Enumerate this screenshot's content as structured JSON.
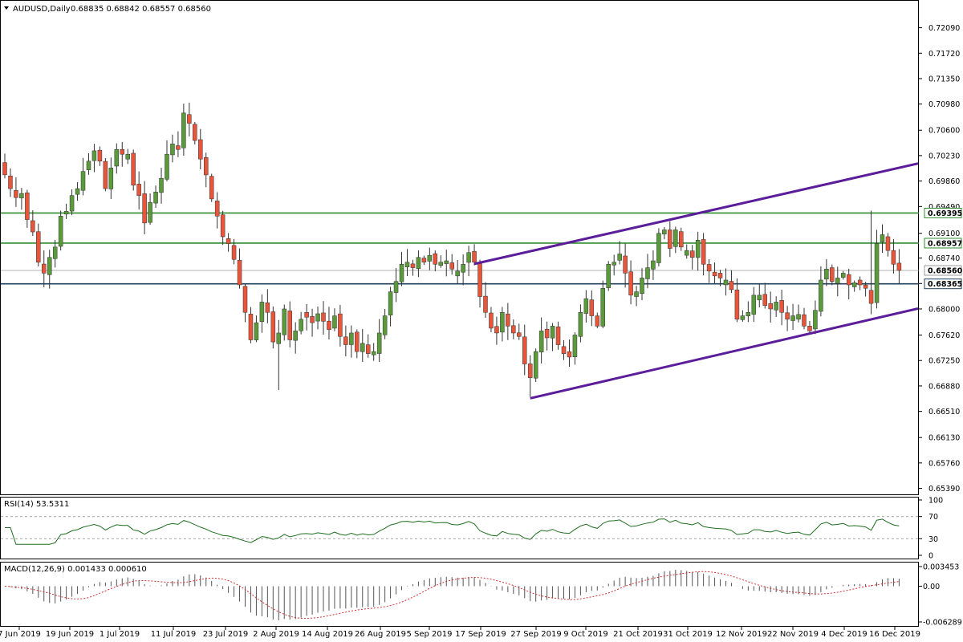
{
  "colors": {
    "bull": "#5a9a3a",
    "bear": "#e8553a",
    "level": "#2e8b2e",
    "level_dark": "#1f3f5a",
    "channel": "#5b1d9a",
    "osc_line": "#1f6e1f",
    "signal": "#cc3333",
    "grid": "#9a9a9a"
  },
  "main": {
    "title": "AUDUSD,Daily",
    "ohlc": "0.68835 0.68842 0.68557 0.68560",
    "price_ticks": [
      "0.72090",
      "0.71720",
      "0.71350",
      "0.70980",
      "0.70600",
      "0.70230",
      "0.69860",
      "0.69490",
      "0.69100",
      "0.68740",
      "0.68370",
      "0.68000",
      "0.67620",
      "0.67250",
      "0.66880",
      "0.66510",
      "0.66130",
      "0.65760",
      "0.65390"
    ],
    "price_tags": [
      {
        "value": 0.69395,
        "label": "0.69395",
        "color": "#2e8b2e"
      },
      {
        "value": 0.68957,
        "label": "0.68957",
        "color": "#2e8b2e"
      },
      {
        "value": 0.6856,
        "label": "0.68560",
        "color": "#9a9a9a"
      },
      {
        "value": 0.68365,
        "label": "0.68365",
        "color": "#1f3f5a"
      }
    ],
    "channel_lines": [
      {
        "i1": 84,
        "p1": 0.68655,
        "i2": 162,
        "p2": 0.7009
      },
      {
        "i1": 94,
        "p1": 0.667,
        "i2": 162,
        "p2": 0.6798
      }
    ]
  },
  "rsi": {
    "title": "RSI(14) 53.5311",
    "ticks": [
      "100",
      "70",
      "30",
      "0"
    ]
  },
  "macd": {
    "title": "MACD(12,26,9) 0.001433 0.000610",
    "ticks": [
      "0.003453",
      "0.00",
      "-0.006289"
    ]
  },
  "dates": [
    "7 Jun 2019",
    "19 Jun 2019",
    "1 Jul 2019",
    "11 Jul 2019",
    "23 Jul 2019",
    "2 Aug 2019",
    "14 Aug 2019",
    "26 Aug 2019",
    "5 Sep 2019",
    "17 Sep 2019",
    "27 Sep 2019",
    "9 Oct 2019",
    "21 Oct 2019",
    "31 Oct 2019",
    "12 Nov 2019",
    "22 Nov 2019",
    "4 Dec 2019",
    "16 Dec 2019"
  ],
  "chart_data": {
    "type": "candlestick",
    "symbol": "AUDUSD",
    "timeframe": "Daily",
    "ylim": [
      0.6535,
      0.7226
    ],
    "close": [
      0.6995,
      0.6975,
      0.6962,
      0.6968,
      0.693,
      0.6912,
      0.6868,
      0.6852,
      0.6875,
      0.689,
      0.6935,
      0.6942,
      0.6965,
      0.6975,
      0.7,
      0.7015,
      0.703,
      0.7015,
      0.6975,
      0.7005,
      0.7032,
      0.7025,
      0.7025,
      0.698,
      0.6965,
      0.6925,
      0.6955,
      0.697,
      0.699,
      0.7025,
      0.704,
      0.7032,
      0.7085,
      0.707,
      0.7045,
      0.7018,
      0.6995,
      0.696,
      0.6935,
      0.6905,
      0.6895,
      0.6872,
      0.6835,
      0.6795,
      0.6755,
      0.678,
      0.681,
      0.6795,
      0.6752,
      0.6765,
      0.68,
      0.6755,
      0.6768,
      0.6785,
      0.6788,
      0.678,
      0.6793,
      0.6782,
      0.677,
      0.679,
      0.676,
      0.6748,
      0.6765,
      0.6738,
      0.675,
      0.6735,
      0.6738,
      0.6765,
      0.679,
      0.6825,
      0.684,
      0.6865,
      0.6868,
      0.686,
      0.6875,
      0.6868,
      0.6878,
      0.6865,
      0.6868,
      0.687,
      0.6858,
      0.6855,
      0.6865,
      0.6882,
      0.6868,
      0.6818,
      0.6795,
      0.6772,
      0.6765,
      0.6795,
      0.6775,
      0.6765,
      0.676,
      0.672,
      0.67,
      0.6738,
      0.6768,
      0.6758,
      0.6775,
      0.6748,
      0.6735,
      0.673,
      0.6762,
      0.6795,
      0.6815,
      0.679,
      0.6775,
      0.683,
      0.6865,
      0.6868,
      0.688,
      0.6852,
      0.682,
      0.6825,
      0.6845,
      0.686,
      0.687,
      0.691,
      0.6915,
      0.6888,
      0.6915,
      0.689,
      0.6885,
      0.6875,
      0.69,
      0.6865,
      0.6855,
      0.6848,
      0.6845,
      0.6842,
      0.6828,
      0.6785,
      0.679,
      0.6795,
      0.682,
      0.682,
      0.6805,
      0.68,
      0.681,
      0.6795,
      0.6785,
      0.679,
      0.6792,
      0.6775,
      0.6768,
      0.6798,
      0.6842,
      0.6858,
      0.684,
      0.6845,
      0.6852,
      0.6835,
      0.6838,
      0.6835,
      0.683,
      0.6808,
      0.6895,
      0.6908,
      0.6885,
      0.6865,
      0.6856
    ]
  }
}
